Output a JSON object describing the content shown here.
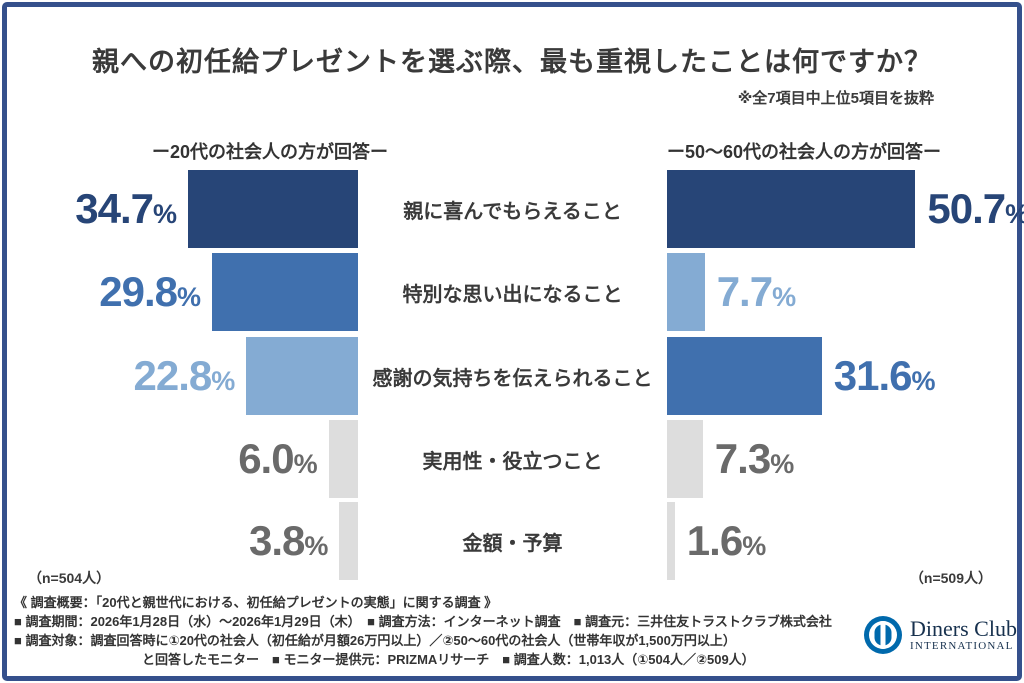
{
  "frame": {
    "border_color": "#35508c"
  },
  "header": {
    "title": "親への初任給プレゼントを選ぶ際、最も重視したことは何ですか？",
    "note": "※全7項目中上位5項目を抜粋"
  },
  "chart_data": {
    "type": "bar",
    "orientation": "horizontal-diverging",
    "title": "親への初任給プレゼントを選ぶ際、最も重視したことは何ですか？",
    "categories": [
      "親に喜んでもらえること",
      "特別な思い出になること",
      "感謝の気持ちを伝えられること",
      "実用性・役立つこと",
      "金額・予算"
    ],
    "unit": "%",
    "xlim": [
      0,
      55
    ],
    "grid": false,
    "series": [
      {
        "name": "ー20代の社会人の方が回答ー",
        "side": "left",
        "values": [
          34.7,
          29.8,
          22.8,
          6.0,
          3.8
        ],
        "value_labels": [
          "34.7",
          "29.8",
          "22.8",
          "6.0",
          "3.8"
        ],
        "color_ranks": [
          "navy",
          "mid",
          "light",
          "gray",
          "gray"
        ],
        "n_label": "（n=504人）"
      },
      {
        "name": "ー50〜60代の社会人の方が回答ー",
        "side": "right",
        "values": [
          50.7,
          7.7,
          31.6,
          7.3,
          1.6
        ],
        "value_labels": [
          "50.7",
          "7.7",
          "31.6",
          "7.3",
          "1.6"
        ],
        "color_ranks": [
          "navy",
          "light",
          "mid",
          "gray",
          "gray"
        ],
        "n_label": "（n=509人）"
      }
    ],
    "palette": {
      "navy": {
        "bar": "#274577",
        "text": "#274577"
      },
      "mid": {
        "bar": "#4070ae",
        "text": "#4070ae"
      },
      "light": {
        "bar": "#84abd3",
        "text": "#84abd3"
      },
      "gray": {
        "bar": "#dddddd",
        "text": "#6a6a6a"
      }
    }
  },
  "footer": {
    "lines": [
      "《 調査概要：「20代と親世代における、初任給プレゼントの実態」に関する調査 》",
      "■ 調査期間：2026年1月28日（水）〜2026年1月29日（木）　■ 調査方法：インターネット調査　■ 調査元：三井住友トラストクラブ株式会社",
      "■ 調査対象：調査回答時に①20代の社会人（初任給が月額26万円以上）／②50〜60代の社会人（世帯年収が1,500万円以上）",
      "と回答したモニター　■ モニター提供元：PRIZMAリサーチ　■ 調査人数：1,013人（①504人／②509人）"
    ]
  },
  "logo": {
    "brand": "Diners Club",
    "subtitle": "INTERNATIONAL"
  }
}
